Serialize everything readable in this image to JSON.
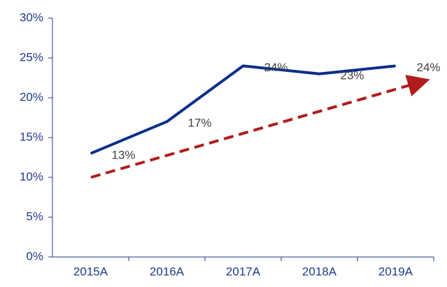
{
  "chart_data": {
    "type": "line",
    "categories": [
      "2015A",
      "2016A",
      "2017A",
      "2018A",
      "2019A"
    ],
    "series": [
      {
        "color": "#0b2f8a",
        "values": [
          13,
          17,
          24,
          23,
          24
        ],
        "value_labels": [
          "13%",
          "17%",
          "24%",
          "23%",
          "24%"
        ]
      }
    ],
    "ylim": [
      0,
      30
    ],
    "yticks": [
      {
        "value": 0,
        "label": "0%"
      },
      {
        "value": 5,
        "label": "5%"
      },
      {
        "value": 10,
        "label": "10%"
      },
      {
        "value": 15,
        "label": "15%"
      },
      {
        "value": 20,
        "label": "20%"
      },
      {
        "value": 25,
        "label": "25%"
      },
      {
        "value": 30,
        "label": "30%"
      }
    ]
  }
}
